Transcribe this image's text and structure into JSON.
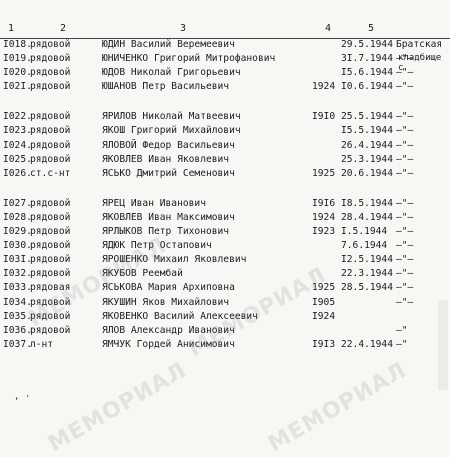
{
  "header": {
    "col1": "1",
    "col2": "2",
    "col3": "3",
    "col4": "4",
    "col5": "5"
  },
  "continuation": "кладбище с",
  "rows_group1": [
    {
      "no": "I018.",
      "rank": "рядовой",
      "name": "ЮДИН Василий Веремеевич",
      "year": "",
      "date": "29.5.1944",
      "place": "Братская"
    },
    {
      "no": "I019.",
      "rank": "рядовой",
      "name": "ЮНИЧЕНКО Григорий Митрофанович",
      "year": "",
      "date": "3I.7.1944",
      "place": "–\"–"
    },
    {
      "no": "I020.",
      "rank": "рядовой",
      "name": "ЮДОВ Николай Григорьевич",
      "year": "",
      "date": "I5.6.1944",
      "place": "–\"–"
    },
    {
      "no": "I02I.",
      "rank": "рядовой",
      "name": "ЮШАНОВ Петр Васильевич",
      "year": "1924",
      "date": "I0.6.1944",
      "place": "–\"–"
    }
  ],
  "rows_group2": [
    {
      "no": "I022.",
      "rank": "рядовой",
      "name": "ЯРИЛОВ Николай Матвеевич",
      "year": "I9I0",
      "date": "25.5.1944",
      "place": "–\"–"
    },
    {
      "no": "I023.",
      "rank": "рядовой",
      "name": "ЯКОШ Григорий Михайлович",
      "year": "",
      "date": "I5.5.1944",
      "place": "–\"–"
    },
    {
      "no": "I024.",
      "rank": "рядовой",
      "name": "ЯЛОВОЙ Федор Васильевич",
      "year": "",
      "date": "26.4.1944",
      "place": "–\"–"
    },
    {
      "no": "I025.",
      "rank": "рядовой",
      "name": "ЯКОВЛЕВ Иван Яковлевич",
      "year": "",
      "date": "25.3.1944",
      "place": "–\"–"
    },
    {
      "no": "I026.",
      "rank": "ст.с-нт",
      "name": "ЯСЬКО Дмитрий Семенович",
      "year": "1925",
      "date": "20.6.1944",
      "place": "–\"–"
    }
  ],
  "rows_group3": [
    {
      "no": "I027.",
      "rank": "рядовой",
      "name": "ЯРЕЦ Иван Иванович",
      "year": "I9I6",
      "date": "I8.5.1944",
      "place": "–\"–"
    },
    {
      "no": "I028.",
      "rank": "рядовой",
      "name": "ЯКОВЛЕВ Иван Максимович",
      "year": "1924",
      "date": "28.4.1944",
      "place": "–\"–"
    },
    {
      "no": "I029.",
      "rank": "рядовой",
      "name": "ЯРЛЫКОВ Петр Тихонович",
      "year": "I923",
      "date": "I.5.1944",
      "place": "–\"–"
    },
    {
      "no": "I030.",
      "rank": "рядовой",
      "name": "ЯДЮК Петр Остапович",
      "year": "",
      "date": "7.6.1944",
      "place": "–\"–"
    },
    {
      "no": "I03I.",
      "rank": "рядовой",
      "name": "ЯРОШЕНКО Михаил Яковлевич",
      "year": "",
      "date": "I2.5.1944",
      "place": "–\"–"
    },
    {
      "no": "I032.",
      "rank": "рядовой",
      "name": "ЯКУБОВ Реембай",
      "year": "",
      "date": "22.3.1944",
      "place": "–\"–"
    },
    {
      "no": "I033.",
      "rank": "рядовая",
      "name": "ЯСЬКОВА Мария Архиповна",
      "year": "1925",
      "date": "28.5.1944",
      "place": "–\"–"
    },
    {
      "no": "I034.",
      "rank": "рядовой",
      "name": "ЯКУШИН Яков Михайлович",
      "year": "I905",
      "date": "",
      "place": "–\"–"
    },
    {
      "no": "I035.",
      "rank": "рядовой",
      "name": "ЯКОВЕНКО Василий Алексеевич",
      "year": "I924",
      "date": "",
      "place": ""
    },
    {
      "no": "I036.",
      "rank": "рядовой",
      "name": "ЯЛОВ Александр Иванович",
      "year": "",
      "date": "",
      "place": "–\""
    },
    {
      "no": "I037.",
      "rank": "л-нт",
      "name": "ЯМЧУК Гордей Анисимович",
      "year": "I9I3",
      "date": "22.4.1944",
      "place": "–\""
    }
  ]
}
